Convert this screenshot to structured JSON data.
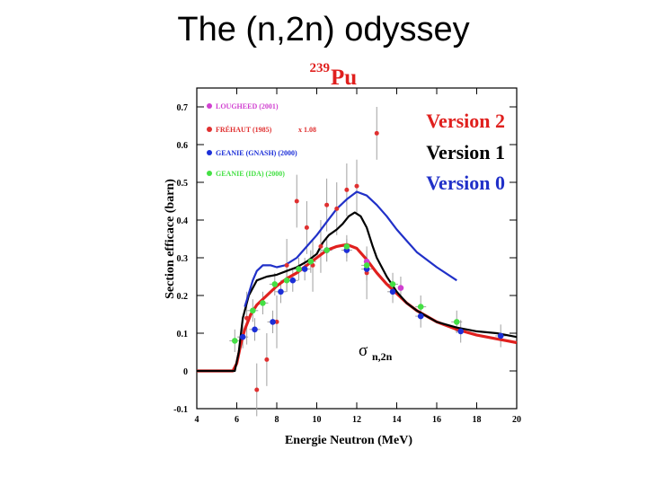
{
  "slide": {
    "title": "The (n,2n) odyssey"
  },
  "colors": {
    "version2": "#e0201e",
    "version1": "#000000",
    "version0": "#2030c8",
    "lougheed": "#d040d0",
    "frehaut": "#e03030",
    "geanie_gnash": "#1c2fd8",
    "geanie_ida": "#44e044",
    "errorbar": "#a0a0a0"
  },
  "chart_data": {
    "type": "line",
    "title": "Pu",
    "title_superscript": "239",
    "xlabel": "Energie Neutron (MeV)",
    "ylabel": "Section efficace (barn)",
    "xlim": [
      4,
      20
    ],
    "ylim": [
      -0.1,
      0.75
    ],
    "x_ticks": [
      "4",
      "6",
      "8",
      "10",
      "12",
      "14",
      "16",
      "18",
      "20"
    ],
    "y_ticks": [
      "-0.1",
      "0",
      "0.1",
      "0.2",
      "0.3",
      "0.4",
      "0.5",
      "0.6",
      "0.7"
    ],
    "annotation": {
      "symbol": "σ",
      "subscript": "n,2n"
    },
    "series": [
      {
        "name": "Version 2",
        "color_key": "version2",
        "x": [
          4,
          5.8,
          6.0,
          6.2,
          6.4,
          6.7,
          7.0,
          7.5,
          8.0,
          8.5,
          9.0,
          9.5,
          10.0,
          10.5,
          11.0,
          11.5,
          12.0,
          12.5,
          13.0,
          13.5,
          14.0,
          14.5,
          15.0,
          16.0,
          17.0,
          18.0,
          19.0,
          20.0
        ],
        "y": [
          0,
          0,
          0.02,
          0.07,
          0.11,
          0.15,
          0.175,
          0.2,
          0.225,
          0.245,
          0.26,
          0.28,
          0.3,
          0.32,
          0.33,
          0.335,
          0.325,
          0.295,
          0.26,
          0.23,
          0.205,
          0.18,
          0.16,
          0.13,
          0.11,
          0.095,
          0.085,
          0.075
        ]
      },
      {
        "name": "Version 1",
        "color_key": "version1",
        "x": [
          4,
          5.9,
          6.1,
          6.3,
          6.6,
          7.0,
          7.5,
          8.0,
          8.5,
          9.0,
          9.5,
          10.0,
          10.3,
          10.6,
          11.0,
          11.3,
          11.6,
          11.9,
          12.2,
          12.5,
          12.8,
          13.0,
          13.5,
          14.0,
          14.5,
          15.0,
          16.0,
          17.0,
          18.0,
          19.0,
          20.0
        ],
        "y": [
          0,
          0,
          0.05,
          0.14,
          0.2,
          0.24,
          0.25,
          0.255,
          0.265,
          0.275,
          0.29,
          0.31,
          0.34,
          0.36,
          0.375,
          0.39,
          0.41,
          0.42,
          0.41,
          0.38,
          0.33,
          0.3,
          0.25,
          0.21,
          0.18,
          0.16,
          0.13,
          0.115,
          0.105,
          0.1,
          0.09
        ]
      },
      {
        "name": "Version 0",
        "color_key": "version0",
        "x": [
          6.4,
          6.8,
          7.0,
          7.3,
          7.7,
          8.0,
          8.4,
          9.0,
          9.5,
          10.0,
          10.5,
          11.0,
          11.5,
          12.0,
          12.5,
          13.0,
          13.5,
          14.0,
          14.5,
          15.0,
          16.0,
          17.0
        ],
        "y": [
          0.17,
          0.24,
          0.265,
          0.28,
          0.28,
          0.275,
          0.28,
          0.3,
          0.33,
          0.36,
          0.395,
          0.43,
          0.455,
          0.475,
          0.465,
          0.44,
          0.41,
          0.375,
          0.345,
          0.315,
          0.275,
          0.24
        ]
      },
      {
        "name": "LOUGHEED (2001)",
        "color_key": "lougheed",
        "marker": "circle",
        "x": [
          12.5,
          14.2
        ],
        "y": [
          0.29,
          0.22
        ]
      },
      {
        "name": "FRÉHAUT (1985)",
        "color_key": "frehaut",
        "marker": "circle",
        "legend_note": "x 1.08",
        "x": [
          6.5,
          7.0,
          7.5,
          8.0,
          8.5,
          9.0,
          9.5,
          9.8,
          10.2,
          10.5,
          11.0,
          11.5,
          12.0,
          12.5,
          13.0
        ],
        "y": [
          0.14,
          -0.05,
          0.03,
          0.13,
          0.28,
          0.45,
          0.38,
          0.28,
          0.33,
          0.44,
          0.43,
          0.48,
          0.49,
          0.26,
          0.63
        ]
      },
      {
        "name": "GEANIE (GNASH) (2000)",
        "color_key": "geanie_gnash",
        "marker": "circle",
        "x": [
          6.3,
          6.9,
          7.8,
          8.2,
          8.8,
          9.4,
          10.5,
          11.5,
          12.5,
          13.8,
          15.2,
          17.2,
          19.2
        ],
        "y": [
          0.09,
          0.11,
          0.13,
          0.21,
          0.24,
          0.27,
          0.32,
          0.32,
          0.27,
          0.21,
          0.145,
          0.105,
          0.093
        ]
      },
      {
        "name": "GEANIE (IDA) (2000)",
        "color_key": "geanie_ida",
        "marker": "circle",
        "x": [
          5.9,
          6.8,
          7.3,
          7.9,
          8.5,
          9.1,
          9.7,
          10.5,
          11.5,
          12.5,
          13.8,
          15.2,
          17.0
        ],
        "y": [
          0.08,
          0.16,
          0.18,
          0.23,
          0.24,
          0.27,
          0.29,
          0.32,
          0.33,
          0.28,
          0.23,
          0.17,
          0.13
        ]
      }
    ],
    "legend_top_left": [
      "LOUGHEED (2001)",
      "FRÉHAUT (1985)",
      "GEANIE (GNASH) (2000)",
      "GEANIE (IDA) (2000)"
    ],
    "legend_note": "x 1.08",
    "legend_right": [
      "Version 2",
      "Version 1",
      "Version 0"
    ]
  }
}
